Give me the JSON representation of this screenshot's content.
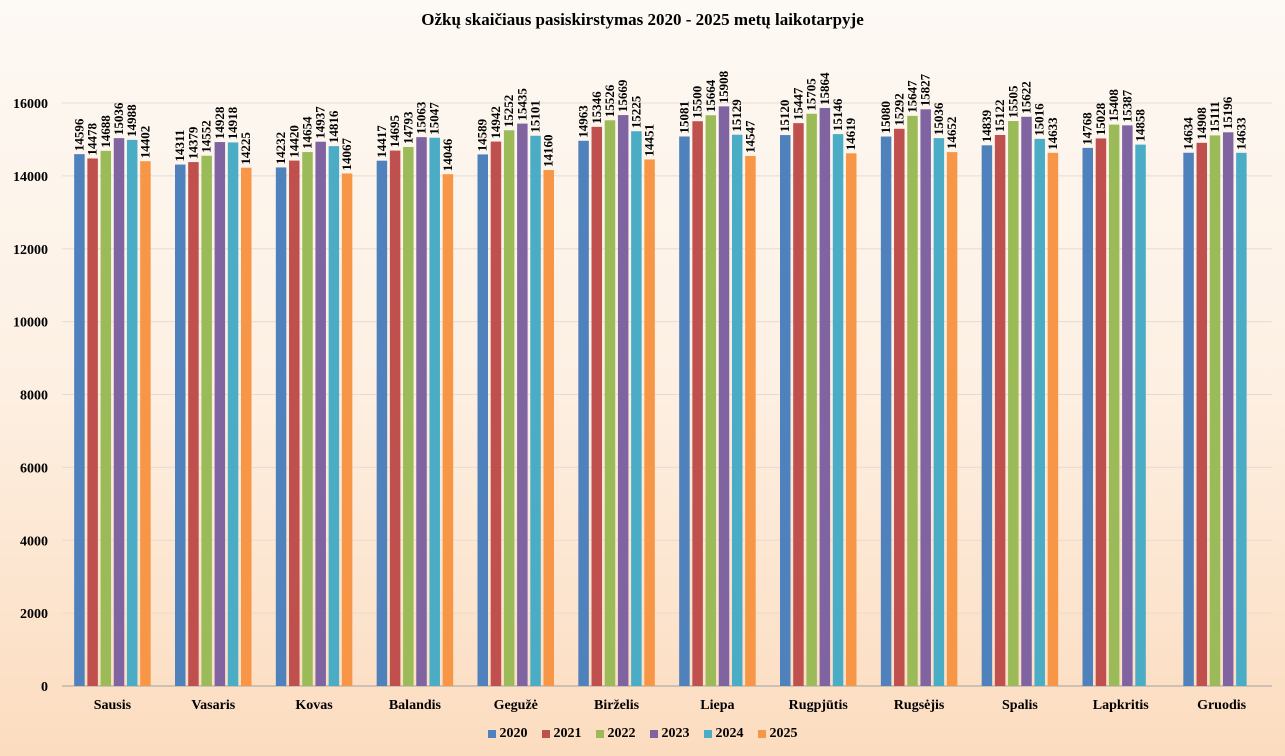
{
  "chart_data": {
    "type": "bar",
    "title": "Ožkų skaičiaus pasiskirstymas 2020 - 2025 metų laikotarpyje",
    "xlabel": "",
    "ylabel": "",
    "ylim": [
      0,
      16000
    ],
    "yticks": [
      0,
      2000,
      4000,
      6000,
      8000,
      10000,
      12000,
      14000,
      16000
    ],
    "grid": true,
    "legend_position": "bottom",
    "categories": [
      "Sausis",
      "Vasaris",
      "Kovas",
      "Balandis",
      "Gegužė",
      "Birželis",
      "Liepa",
      "Rugpjūtis",
      "Rugsėjis",
      "Spalis",
      "Lapkritis",
      "Gruodis"
    ],
    "series": [
      {
        "name": "2020",
        "color": "#4f81bd",
        "values": [
          14596,
          14311,
          14232,
          14417,
          14589,
          14963,
          15081,
          15120,
          15080,
          14839,
          14768,
          14634
        ]
      },
      {
        "name": "2021",
        "color": "#c0504d",
        "values": [
          14478,
          14379,
          14420,
          14695,
          14942,
          15346,
          15500,
          15447,
          15292,
          15122,
          15028,
          14908
        ]
      },
      {
        "name": "2022",
        "color": "#9bbb59",
        "values": [
          14688,
          14552,
          14654,
          14793,
          15252,
          15526,
          15664,
          15705,
          15647,
          15505,
          15408,
          15111
        ]
      },
      {
        "name": "2023",
        "color": "#8064a2",
        "values": [
          15036,
          14928,
          14937,
          15063,
          15435,
          15669,
          15908,
          15864,
          15827,
          15622,
          15387,
          15196
        ]
      },
      {
        "name": "2024",
        "color": "#4bacc6",
        "values": [
          14988,
          14918,
          14816,
          15047,
          15101,
          15225,
          15129,
          15146,
          15036,
          15016,
          14858,
          14633
        ]
      },
      {
        "name": "2025",
        "color": "#f79646",
        "values": [
          14402,
          14225,
          14067,
          14046,
          14160,
          14451,
          14547,
          14619,
          14652,
          14633,
          null,
          null
        ]
      }
    ]
  }
}
